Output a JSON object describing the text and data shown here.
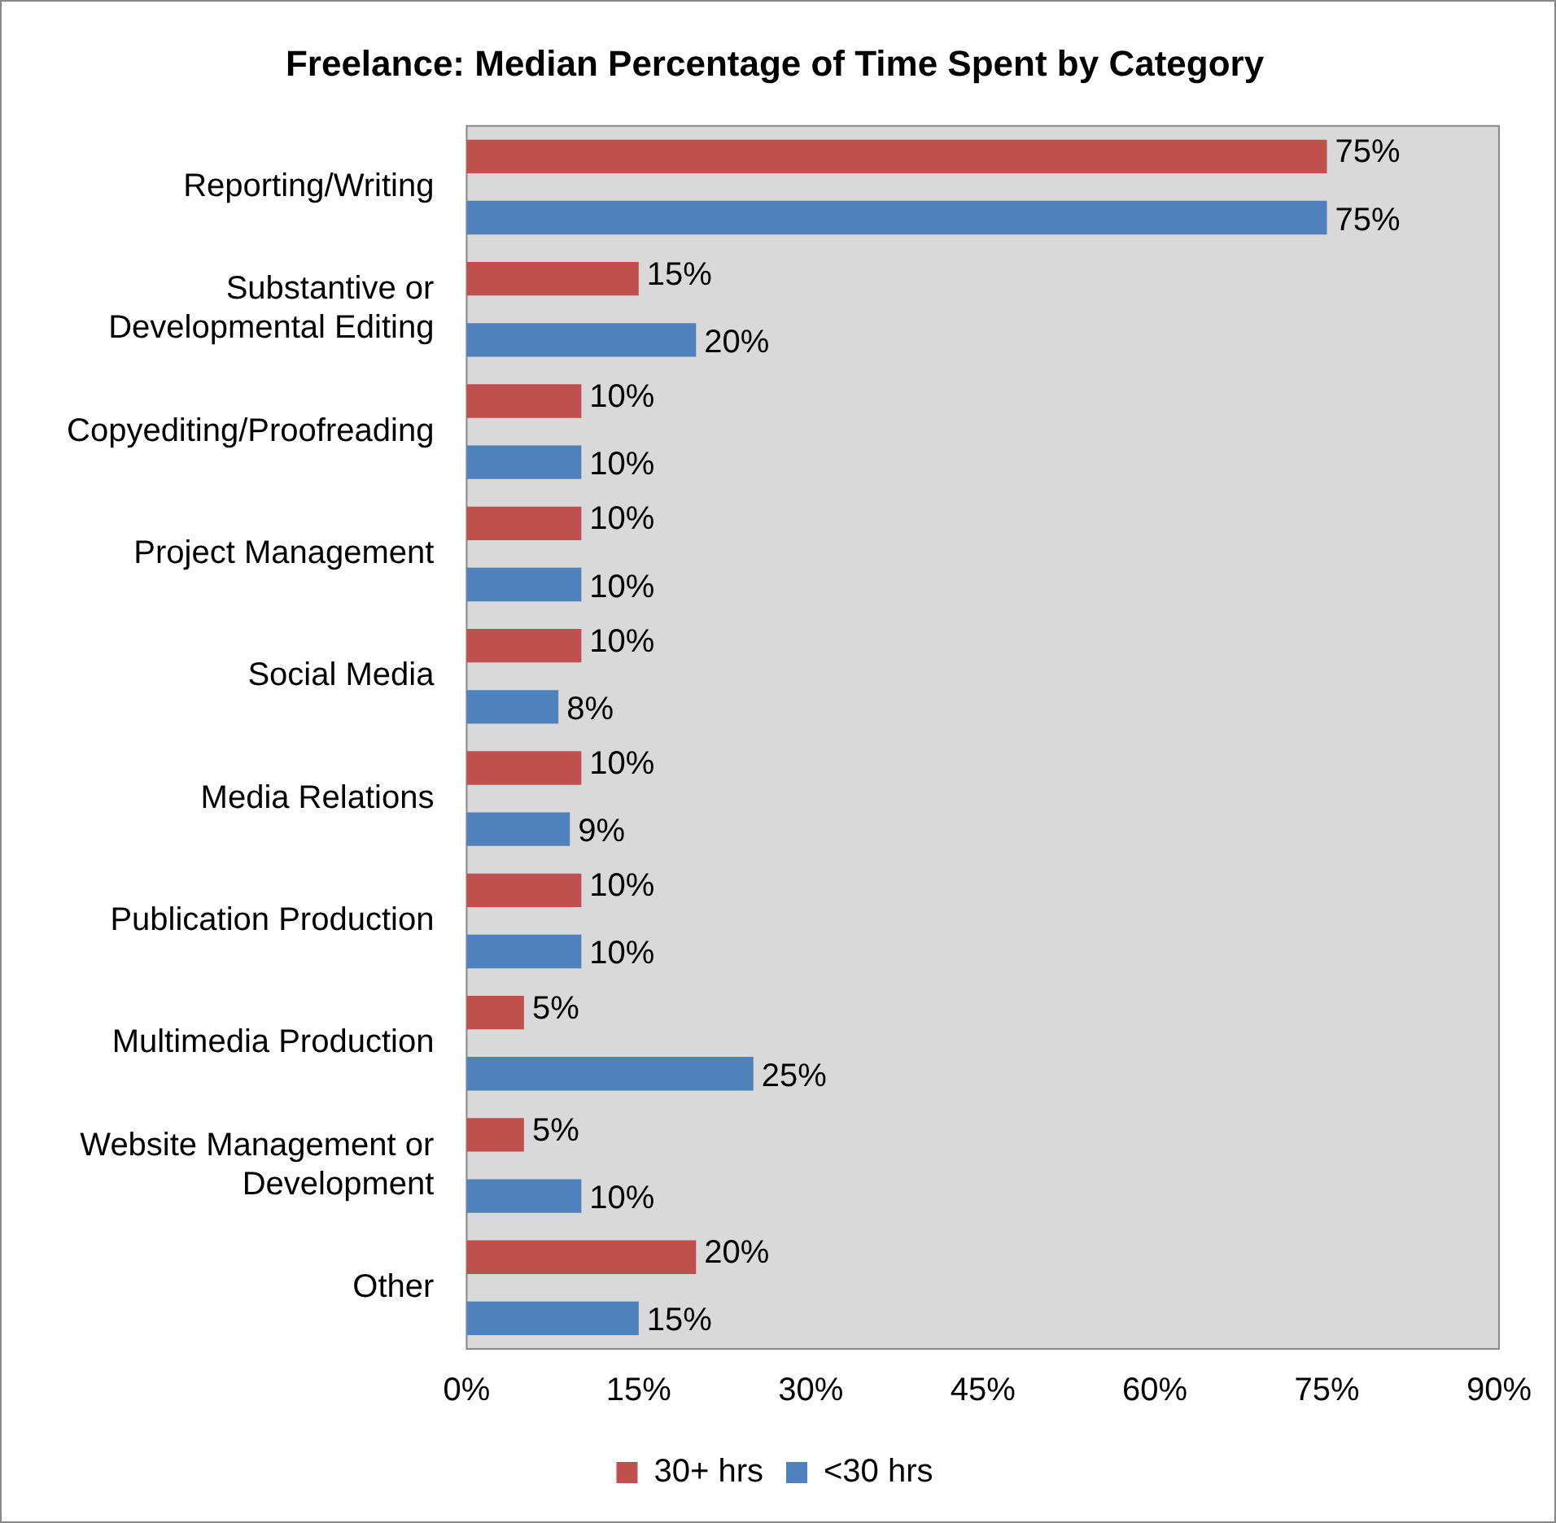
{
  "chart_data": {
    "type": "bar",
    "orientation": "horizontal",
    "title": "Freelance: Median Percentage of Time Spent by Category",
    "categories": [
      "Reporting/Writing",
      "Substantive or\nDevelopmental Editing",
      "Copyediting/Proofreading",
      "Project Management",
      "Social Media",
      "Media Relations",
      "Publication Production",
      "Multimedia Production",
      "Website Management or\nDevelopment",
      "Other"
    ],
    "series": [
      {
        "name": "30+ hrs",
        "color": "#c0504d",
        "values": [
          75,
          15,
          10,
          10,
          10,
          10,
          10,
          5,
          5,
          20
        ],
        "value_labels": [
          "75%",
          "15%",
          "10%",
          "10%",
          "10%",
          "10%",
          "10%",
          "5%",
          "5%",
          "20%"
        ]
      },
      {
        "name": "<30 hrs",
        "color": "#4f81bd",
        "values": [
          75,
          20,
          10,
          10,
          8,
          9,
          10,
          25,
          10,
          15
        ],
        "value_labels": [
          "75%",
          "20%",
          "10%",
          "10%",
          "8%",
          "9%",
          "10%",
          "25%",
          "10%",
          "15%"
        ]
      }
    ],
    "xlim": [
      0,
      90
    ],
    "xticks": [
      {
        "value": 0,
        "label": "0%"
      },
      {
        "value": 15,
        "label": "15%"
      },
      {
        "value": 30,
        "label": "30%"
      },
      {
        "value": 45,
        "label": "45%"
      },
      {
        "value": 60,
        "label": "60%"
      },
      {
        "value": 75,
        "label": "75%"
      },
      {
        "value": 90,
        "label": "90%"
      }
    ],
    "grid": false,
    "legend": "bottom"
  }
}
